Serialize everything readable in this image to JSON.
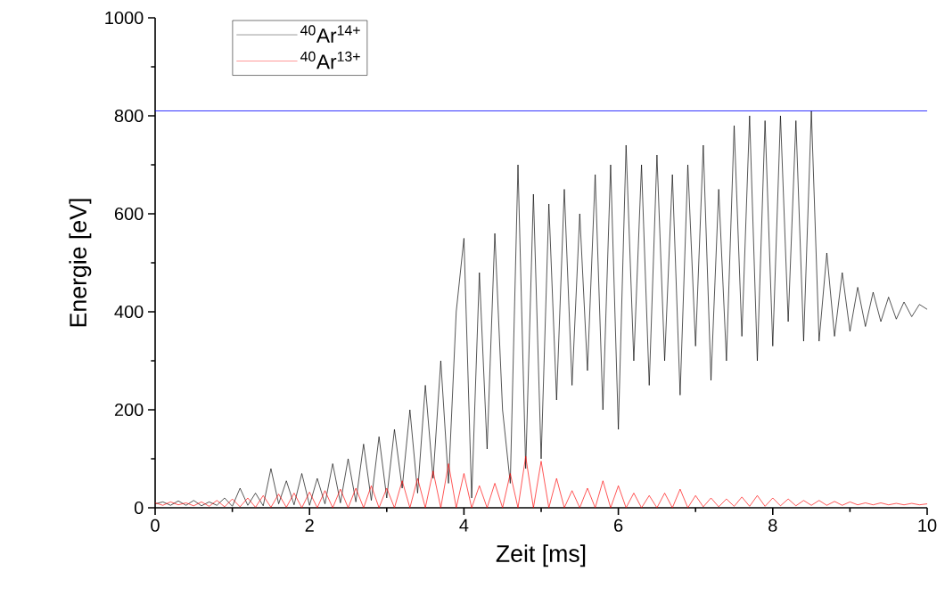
{
  "chart_data": {
    "type": "line",
    "xlabel": "Zeit [ms]",
    "ylabel": "Energie [eV]",
    "x": [
      0.0,
      0.1,
      0.2,
      0.3,
      0.4,
      0.5,
      0.6,
      0.7,
      0.8,
      0.9,
      1.0,
      1.1,
      1.2,
      1.3,
      1.4,
      1.5,
      1.6,
      1.7,
      1.8,
      1.9,
      2.0,
      2.1,
      2.2,
      2.3,
      2.4,
      2.5,
      2.6,
      2.7,
      2.8,
      2.9,
      3.0,
      3.1,
      3.2,
      3.3,
      3.4,
      3.5,
      3.6,
      3.7,
      3.8,
      3.9,
      4.0,
      4.1,
      4.2,
      4.3,
      4.4,
      4.5,
      4.6,
      4.7,
      4.8,
      4.9,
      5.0,
      5.1,
      5.2,
      5.3,
      5.4,
      5.5,
      5.6,
      5.7,
      5.8,
      5.9,
      6.0,
      6.1,
      6.2,
      6.3,
      6.4,
      6.5,
      6.6,
      6.7,
      6.8,
      6.9,
      7.0,
      7.1,
      7.2,
      7.3,
      7.4,
      7.5,
      7.6,
      7.7,
      7.8,
      7.9,
      8.0,
      8.1,
      8.2,
      8.3,
      8.4,
      8.5,
      8.6,
      8.7,
      8.8,
      8.9,
      9.0,
      9.1,
      9.2,
      9.3,
      9.4,
      9.5,
      9.6,
      9.7,
      9.8,
      9.9,
      10.0
    ],
    "series": [
      {
        "name": "$^{40}$Ar$^{14+}$",
        "color": "#000000",
        "values": [
          8,
          12,
          5,
          14,
          5,
          15,
          4,
          12,
          5,
          20,
          3,
          40,
          5,
          30,
          4,
          80,
          8,
          55,
          6,
          70,
          5,
          60,
          8,
          90,
          10,
          100,
          12,
          130,
          15,
          145,
          20,
          160,
          40,
          200,
          30,
          250,
          60,
          300,
          50,
          400,
          550,
          20,
          480,
          120,
          560,
          200,
          50,
          700,
          80,
          640,
          100,
          620,
          220,
          650,
          250,
          600,
          280,
          680,
          200,
          700,
          160,
          740,
          300,
          700,
          250,
          720,
          300,
          680,
          230,
          700,
          330,
          740,
          260,
          650,
          300,
          780,
          350,
          800,
          300,
          790,
          330,
          800,
          380,
          790,
          340,
          810,
          340,
          520,
          350,
          480,
          360,
          450,
          370,
          440,
          380,
          430,
          385,
          420,
          390,
          415,
          405
        ]
      },
      {
        "name": "$^{40}$Ar$^{13+}$",
        "color": "#ff0000",
        "values": [
          10,
          5,
          12,
          6,
          10,
          4,
          12,
          3,
          15,
          2,
          18,
          2,
          20,
          1,
          25,
          1,
          28,
          1,
          30,
          0,
          32,
          0,
          35,
          0,
          38,
          0,
          40,
          0,
          45,
          0,
          40,
          0,
          55,
          0,
          60,
          0,
          75,
          0,
          90,
          0,
          70,
          0,
          45,
          0,
          50,
          0,
          70,
          0,
          105,
          0,
          95,
          0,
          60,
          0,
          35,
          0,
          40,
          0,
          55,
          0,
          45,
          0,
          30,
          0,
          25,
          0,
          30,
          0,
          38,
          0,
          25,
          2,
          20,
          2,
          18,
          3,
          22,
          3,
          25,
          3,
          20,
          4,
          18,
          4,
          15,
          5,
          15,
          5,
          13,
          5,
          12,
          6,
          10,
          6,
          10,
          6,
          9,
          6,
          9,
          6,
          8
        ]
      }
    ],
    "xlim": [
      0,
      10
    ],
    "ylim": [
      0,
      1000
    ],
    "xticks": [
      0,
      2,
      4,
      6,
      8,
      10
    ],
    "yticks": [
      0,
      200,
      400,
      600,
      800,
      1000
    ],
    "ref_lines": [
      {
        "axis": "y",
        "value": 810,
        "color": "#0000ff"
      }
    ],
    "legend": "top left"
  }
}
